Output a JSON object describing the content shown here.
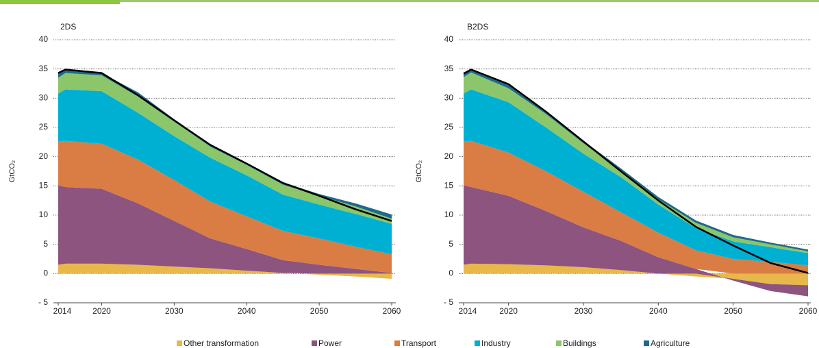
{
  "legend": [
    {
      "name": "Other transformation",
      "color": "#e8b84b"
    },
    {
      "name": "Power",
      "color": "#8e5480"
    },
    {
      "name": "Transport",
      "color": "#d97d45"
    },
    {
      "name": "Industry",
      "color": "#00b0d2"
    },
    {
      "name": "Buildings",
      "color": "#8cc66b"
    },
    {
      "name": "Agriculture",
      "color": "#1f6a8a"
    }
  ],
  "chart_data": [
    {
      "type": "stacked_area",
      "title": "2DS",
      "y_label": "GtCO₂",
      "x": [
        2014,
        2015,
        2020,
        2025,
        2030,
        2035,
        2040,
        2045,
        2050,
        2055,
        2060
      ],
      "xlim": [
        2014,
        2060
      ],
      "xticks": [
        2014,
        2020,
        2030,
        2040,
        2050,
        2060
      ],
      "ylim": [
        -5,
        40
      ],
      "yticks": [
        {
          "value": -5,
          "label": "- 5"
        },
        0,
        5,
        10,
        15,
        20,
        25,
        30,
        35,
        40
      ],
      "grid": true,
      "series": [
        {
          "values": [
            1.5,
            1.7,
            1.7,
            1.5,
            1.2,
            0.9,
            0.5,
            0.1,
            -0.2,
            -0.5,
            -0.9
          ]
        },
        {
          "values": [
            13.6,
            13.1,
            12.8,
            10.5,
            7.8,
            5.1,
            3.7,
            2.2,
            1.5,
            0.8,
            0.1
          ]
        },
        {
          "values": [
            7.5,
            7.9,
            7.7,
            7.5,
            7.0,
            6.3,
            5.6,
            5.0,
            4.5,
            3.8,
            3.2
          ]
        },
        {
          "values": [
            8.2,
            8.8,
            9.0,
            8.0,
            7.5,
            7.5,
            7.0,
            6.2,
            5.8,
            5.6,
            5.2
          ]
        },
        {
          "values": [
            2.7,
            2.8,
            2.7,
            2.8,
            2.5,
            1.9,
            1.8,
            1.7,
            1.5,
            1.3,
            0.9
          ]
        },
        {
          "values": [
            0.8,
            0.5,
            0.4,
            0.7,
            0.4,
            0.4,
            0.3,
            0.4,
            0.3,
            0.5,
            0.7
          ]
        }
      ],
      "line": {
        "color": "#000000",
        "values": [
          34.3,
          34.9,
          34.3,
          30.5,
          26.2,
          22.0,
          18.8,
          15.5,
          13.3,
          11.0,
          9.0
        ]
      }
    },
    {
      "type": "stacked_area",
      "title": "B2DS",
      "y_label": "GtCO₂",
      "x": [
        2014,
        2015,
        2020,
        2025,
        2030,
        2035,
        2040,
        2045,
        2050,
        2055,
        2060
      ],
      "xlim": [
        2014,
        2060
      ],
      "xticks": [
        2014,
        2020,
        2030,
        2040,
        2050,
        2060
      ],
      "ylim": [
        -5,
        40
      ],
      "yticks": [
        {
          "value": -5,
          "label": "- 5"
        },
        0,
        5,
        10,
        15,
        20,
        25,
        30,
        35,
        40
      ],
      "grid": true,
      "series": [
        {
          "values": [
            1.5,
            1.7,
            1.6,
            1.4,
            1.1,
            0.6,
            0.0,
            -0.5,
            -0.9,
            -1.8,
            -2.0
          ]
        },
        {
          "values": [
            13.6,
            13.1,
            11.7,
            9.3,
            6.8,
            5.0,
            2.8,
            0.8,
            -0.3,
            -1.2,
            -1.9
          ]
        },
        {
          "values": [
            7.5,
            7.9,
            7.4,
            6.8,
            6.1,
            4.9,
            4.2,
            3.2,
            2.5,
            2.0,
            1.4
          ]
        },
        {
          "values": [
            8.2,
            8.8,
            8.6,
            7.5,
            6.5,
            6.0,
            4.8,
            3.8,
            3.0,
            2.5,
            2.1
          ]
        },
        {
          "values": [
            2.8,
            2.9,
            2.4,
            2.3,
            1.8,
            1.1,
            0.9,
            0.9,
            0.7,
            0.5,
            0.3
          ]
        },
        {
          "values": [
            0.6,
            0.5,
            0.6,
            0.4,
            0.4,
            0.4,
            0.4,
            0.4,
            0.4,
            0.3,
            0.3
          ]
        }
      ],
      "line": {
        "color": "#000000",
        "values": [
          34.2,
          34.9,
          32.4,
          27.7,
          22.6,
          17.5,
          12.5,
          8.0,
          4.8,
          1.8,
          0.1
        ]
      }
    }
  ]
}
